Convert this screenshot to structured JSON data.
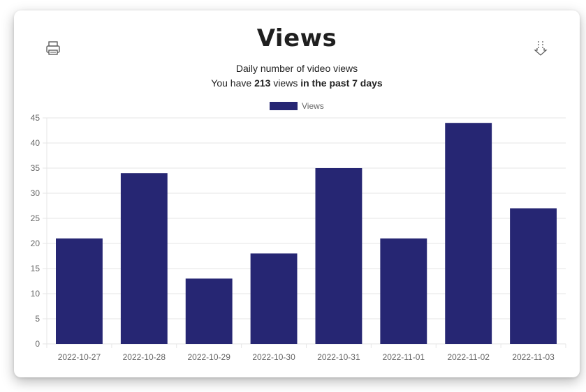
{
  "header": {
    "title": "Views",
    "subtitle": "Daily number of video views",
    "summary_prefix": "You have",
    "summary_count": "213",
    "summary_mid": "views",
    "summary_period": "in the past 7 days"
  },
  "toolbar": {
    "print_icon": "printer-icon",
    "download_icon": "download-icon"
  },
  "chart_data": {
    "type": "bar",
    "categories": [
      "2022-10-27",
      "2022-10-28",
      "2022-10-29",
      "2022-10-30",
      "2022-10-31",
      "2022-11-01",
      "2022-11-02",
      "2022-11-03"
    ],
    "series": [
      {
        "name": "Views",
        "values": [
          21,
          34,
          13,
          18,
          35,
          21,
          44,
          27
        ],
        "color": "#262673"
      }
    ],
    "ylim": [
      0,
      45
    ],
    "yticks": [
      0,
      5,
      10,
      15,
      20,
      25,
      30,
      35,
      40,
      45
    ],
    "grid": true,
    "legend": "top-center",
    "xlabel": "",
    "ylabel": ""
  }
}
